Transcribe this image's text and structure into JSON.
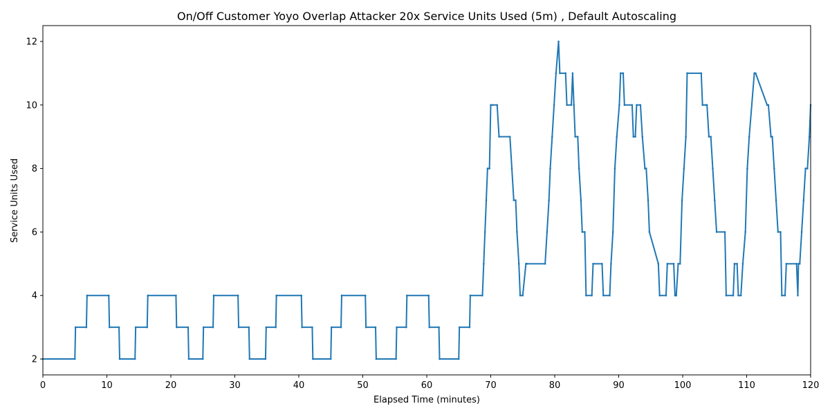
{
  "chart_data": {
    "type": "line",
    "title": "On/Off Customer Yoyo Overlap Attacker 20x Service Units Used (5m) , Default Autoscaling",
    "xlabel": "Elapsed Time (minutes)",
    "ylabel": "Service Units Used",
    "xlim": [
      0,
      120
    ],
    "ylim": [
      1.5,
      12.5
    ],
    "xticks": [
      0,
      10,
      20,
      30,
      40,
      50,
      60,
      70,
      80,
      90,
      100,
      110,
      120
    ],
    "yticks": [
      2,
      4,
      6,
      8,
      10,
      12
    ],
    "grid": false,
    "legend": "none",
    "line_color": "#1f77b4",
    "marker": "dot",
    "series": [
      {
        "x": [
          0,
          5,
          5.1,
          6.8,
          6.9,
          10.3,
          10.4,
          11.9,
          12.0,
          14.4,
          14.5,
          16.3,
          16.4,
          20.8,
          20.9,
          22.7,
          22.8,
          25.0,
          25.1,
          26.6,
          26.7,
          30.5,
          30.6,
          32.2,
          32.3,
          34.8,
          34.9,
          36.4,
          36.5,
          40.4,
          40.5,
          42.1,
          42.2,
          45.0,
          45.1,
          46.6,
          46.7,
          50.4,
          50.5,
          52.0,
          52.1,
          55.2,
          55.3,
          56.8,
          56.9,
          60.3,
          60.4,
          61.9,
          62.0,
          65.0,
          65.1,
          66.7,
          66.8,
          68.7,
          68.9,
          69.1,
          69.3,
          69.5,
          69.8,
          70.0,
          70.3,
          71.0,
          71.3,
          73.0,
          73.3,
          73.6,
          73.9,
          74.1,
          74.4,
          74.6,
          75.0,
          75.5,
          75.7,
          78.5,
          78.8,
          79.1,
          79.3,
          79.6,
          79.9,
          80.2,
          80.6,
          80.8,
          81.7,
          81.9,
          82.6,
          82.8,
          83.0,
          83.2,
          83.6,
          83.8,
          84.1,
          84.3,
          84.7,
          84.9,
          85.8,
          86.0,
          87.4,
          87.6,
          88.6,
          88.8,
          89.1,
          89.4,
          89.7,
          90.1,
          90.3,
          90.7,
          90.9,
          92.1,
          92.3,
          92.6,
          92.8,
          93.4,
          93.7,
          94.1,
          94.3,
          94.6,
          94.8,
          96.2,
          96.4,
          97.4,
          97.6,
          98.6,
          98.8,
          99.0,
          99.3,
          99.6,
          99.9,
          100.2,
          100.5,
          100.7,
          102.9,
          103.1,
          103.6,
          103.8,
          104.1,
          104.4,
          104.7,
          105.0,
          105.3,
          106.6,
          106.8,
          107.9,
          108.1,
          108.5,
          108.7,
          109.1,
          109.4,
          109.8,
          110.1,
          110.4,
          111.2,
          111.4,
          113.2,
          113.4,
          113.8,
          114.0,
          114.3,
          114.6,
          114.9,
          115.3,
          115.5,
          116.0,
          116.2,
          117.8,
          118.0,
          118.1,
          118.3,
          118.6,
          118.9,
          119.2,
          119.5,
          119.8,
          120.0
        ],
        "y": [
          2,
          2,
          3,
          3,
          4,
          4,
          3,
          3,
          2,
          2,
          3,
          3,
          4,
          4,
          3,
          3,
          2,
          2,
          3,
          3,
          4,
          4,
          3,
          3,
          2,
          2,
          3,
          3,
          4,
          4,
          3,
          3,
          2,
          2,
          3,
          3,
          4,
          4,
          3,
          3,
          2,
          2,
          3,
          3,
          4,
          4,
          3,
          3,
          2,
          2,
          3,
          3,
          4,
          4,
          5,
          6,
          7,
          8,
          8,
          10,
          10,
          10,
          9,
          9,
          8,
          7,
          7,
          6,
          5,
          4,
          4,
          5,
          5,
          5,
          6,
          7,
          8,
          9,
          10,
          11,
          12,
          11,
          11,
          10,
          10,
          11,
          10,
          9,
          9,
          8,
          7,
          6,
          6,
          4,
          4,
          5,
          5,
          4,
          4,
          5,
          6,
          8,
          9,
          10,
          11,
          11,
          10,
          10,
          9,
          9,
          10,
          10,
          9,
          8,
          8,
          7,
          6,
          5,
          4,
          4,
          5,
          5,
          4,
          4,
          5,
          5,
          7,
          8,
          9,
          11,
          11,
          10,
          10,
          10,
          9,
          9,
          8,
          7,
          6,
          6,
          4,
          4,
          5,
          5,
          4,
          4,
          5,
          6,
          8,
          9,
          11,
          11,
          10,
          10,
          9,
          9,
          8,
          7,
          6,
          6,
          4,
          4,
          5,
          5,
          4,
          5,
          5,
          6,
          7,
          8,
          8,
          9,
          10
        ]
      }
    ]
  }
}
